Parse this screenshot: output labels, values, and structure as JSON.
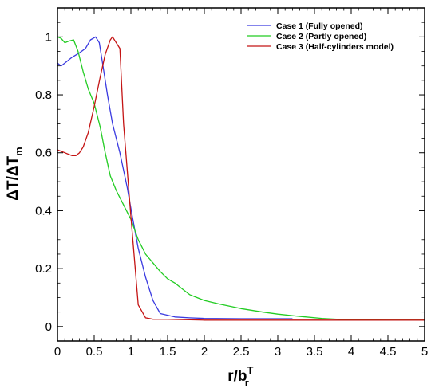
{
  "chart_data": {
    "type": "line",
    "title": "",
    "xlabel": {
      "main": "r/b",
      "sup": "T",
      "sub": "r"
    },
    "ylabel": {
      "main": "ΔT/ΔT",
      "sub": "m"
    },
    "xlim": [
      0,
      5
    ],
    "ylim": [
      -0.05,
      1.1
    ],
    "x_ticks": [
      0,
      0.5,
      1,
      1.5,
      2,
      2.5,
      3,
      3.5,
      4,
      4.5,
      5
    ],
    "x_tick_labels": [
      "0",
      "0.5",
      "1",
      "1.5",
      "2",
      "2.5",
      "3",
      "3.5",
      "4",
      "4.5",
      "5"
    ],
    "y_ticks": [
      0,
      0.2,
      0.4,
      0.6,
      0.8,
      1
    ],
    "y_tick_labels": [
      "0",
      "0.2",
      "0.4",
      "0.6",
      "0.8",
      "1"
    ],
    "grid": false,
    "legend_position": "top-right",
    "series": [
      {
        "name": "Case 1 (Fully opened)",
        "color": "#3a3ae0",
        "x": [
          0,
          0.05,
          0.1,
          0.2,
          0.3,
          0.38,
          0.45,
          0.52,
          0.57,
          0.62,
          0.68,
          0.75,
          0.85,
          0.95,
          1.02,
          1.1,
          1.2,
          1.3,
          1.4,
          1.6,
          1.8,
          2.0,
          2.5,
          3.0,
          3.2
        ],
        "y": [
          0.91,
          0.9,
          0.91,
          0.93,
          0.945,
          0.96,
          0.99,
          1.0,
          0.98,
          0.9,
          0.8,
          0.7,
          0.6,
          0.48,
          0.38,
          0.27,
          0.17,
          0.09,
          0.045,
          0.033,
          0.03,
          0.028,
          0.027,
          0.027,
          0.027
        ]
      },
      {
        "name": "Case 2 (Partly opened)",
        "color": "#22cc22",
        "x": [
          0,
          0.05,
          0.1,
          0.15,
          0.22,
          0.28,
          0.35,
          0.42,
          0.5,
          0.58,
          0.65,
          0.72,
          0.8,
          0.9,
          1.0,
          1.1,
          1.2,
          1.3,
          1.4,
          1.5,
          1.6,
          1.7,
          1.8,
          1.9,
          2.0,
          2.2,
          2.5,
          2.8,
          3.0,
          3.3,
          3.6,
          3.8,
          4.0,
          4.2,
          4.5,
          5.0
        ],
        "y": [
          1.0,
          0.995,
          0.98,
          0.985,
          0.99,
          0.95,
          0.88,
          0.82,
          0.77,
          0.69,
          0.6,
          0.52,
          0.47,
          0.42,
          0.37,
          0.3,
          0.25,
          0.22,
          0.19,
          0.165,
          0.15,
          0.13,
          0.11,
          0.1,
          0.09,
          0.078,
          0.062,
          0.05,
          0.043,
          0.035,
          0.028,
          0.025,
          0.023,
          0.023,
          0.022,
          0.022
        ]
      },
      {
        "name": "Case 3 (Half-cylinders model)",
        "color": "#c41414",
        "x": [
          0,
          0.05,
          0.1,
          0.15,
          0.2,
          0.25,
          0.3,
          0.35,
          0.42,
          0.5,
          0.58,
          0.65,
          0.72,
          0.75,
          0.8,
          0.85,
          0.9,
          1.0,
          1.1,
          1.2,
          1.3,
          1.5,
          2.0,
          3.0,
          4.0,
          5.0
        ],
        "y": [
          0.61,
          0.605,
          0.6,
          0.595,
          0.59,
          0.59,
          0.6,
          0.62,
          0.67,
          0.76,
          0.86,
          0.94,
          0.99,
          1.0,
          0.98,
          0.96,
          0.7,
          0.38,
          0.075,
          0.03,
          0.025,
          0.025,
          0.022,
          0.022,
          0.022,
          0.022
        ]
      }
    ]
  }
}
